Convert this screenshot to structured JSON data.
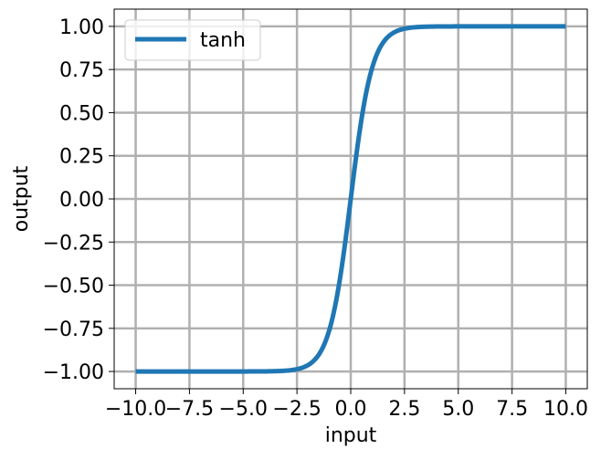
{
  "chart_data": {
    "type": "line",
    "function": "tanh",
    "x_range": [
      -10,
      10
    ],
    "xlim": [
      -11,
      11
    ],
    "ylim": [
      -1.1,
      1.1
    ],
    "xlabel": "input",
    "ylabel": "output",
    "title": "",
    "xticks": [
      -10.0,
      -7.5,
      -5.0,
      -2.5,
      0.0,
      2.5,
      5.0,
      7.5,
      10.0
    ],
    "xtick_labels": [
      "−10.0",
      "−7.5",
      "−5.0",
      "−2.5",
      "0.0",
      "2.5",
      "5.0",
      "7.5",
      "10.0"
    ],
    "yticks": [
      -1.0,
      -0.75,
      -0.5,
      -0.25,
      0.0,
      0.25,
      0.5,
      0.75,
      1.0
    ],
    "ytick_labels": [
      "−1.00",
      "−0.75",
      "−0.50",
      "−0.25",
      "0.00",
      "0.25",
      "0.50",
      "0.75",
      "1.00"
    ],
    "grid": true,
    "legend_position": "top-left",
    "series": [
      {
        "name": "tanh",
        "color": "#1f77b4",
        "x": [
          -10,
          -9,
          -8,
          -7,
          -6,
          -5,
          -4,
          -3.5,
          -3,
          -2.5,
          -2,
          -1.75,
          -1.5,
          -1.25,
          -1,
          -0.75,
          -0.5,
          -0.25,
          0,
          0.25,
          0.5,
          0.75,
          1,
          1.25,
          1.5,
          1.75,
          2,
          2.5,
          3,
          3.5,
          4,
          5,
          6,
          7,
          8,
          9,
          10
        ],
        "y": [
          -1.0,
          -1.0,
          -1.0,
          -1.0,
          -1.0,
          -0.9999,
          -0.9993,
          -0.9982,
          -0.9951,
          -0.9866,
          -0.964,
          -0.9414,
          -0.9051,
          -0.8483,
          -0.7616,
          -0.6351,
          -0.4621,
          -0.2449,
          0.0,
          0.2449,
          0.4621,
          0.6351,
          0.7616,
          0.8483,
          0.9051,
          0.9414,
          0.964,
          0.9866,
          0.9951,
          0.9982,
          0.9993,
          0.9999,
          1.0,
          1.0,
          1.0,
          1.0,
          1.0
        ]
      }
    ]
  },
  "colors": {
    "grid": "#b0b0b0",
    "axes": "#000000",
    "legend_border": "#cccccc"
  }
}
